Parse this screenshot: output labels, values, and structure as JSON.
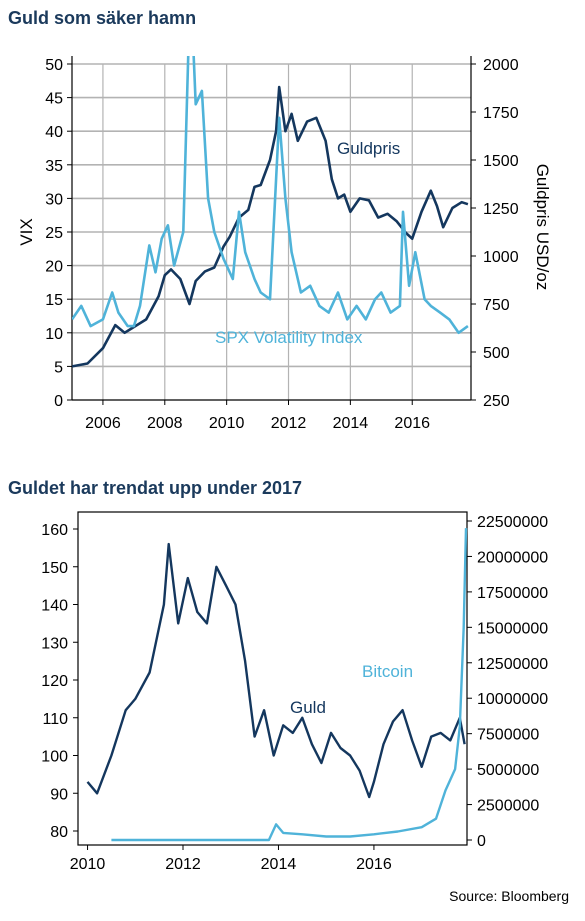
{
  "source": "Source: Bloomberg",
  "colors": {
    "dark": "#14375e",
    "light": "#4fb3d9",
    "grid": "#b3b3b3"
  },
  "chart_data": [
    {
      "type": "line",
      "title": "Guld som säker hamn",
      "ylabel_left": "VIX",
      "ylabel_right": "Guldpris USD/oz",
      "x_ticks": [
        "2006",
        "2008",
        "2010",
        "2012",
        "2014",
        "2016"
      ],
      "y_left_ticks": [
        "0",
        "5",
        "10",
        "15",
        "20",
        "25",
        "30",
        "35",
        "40",
        "45",
        "50"
      ],
      "y_right_ticks": [
        "250",
        "500",
        "750",
        "1000",
        "1250",
        "1500",
        "1750",
        "2000"
      ],
      "xlim": [
        2005.0,
        2017.9
      ],
      "ylim_left": [
        0,
        50
      ],
      "ylim_right": [
        250,
        2000
      ],
      "grid": true,
      "series": [
        {
          "name": "Guldpris",
          "axis": "right",
          "x": [
            2005.0,
            2005.5,
            2006.0,
            2006.4,
            2006.7,
            2007.0,
            2007.4,
            2007.8,
            2008.0,
            2008.2,
            2008.5,
            2008.8,
            2009.0,
            2009.3,
            2009.6,
            2009.9,
            2010.1,
            2010.4,
            2010.7,
            2010.9,
            2011.1,
            2011.4,
            2011.6,
            2011.7,
            2011.9,
            2012.1,
            2012.3,
            2012.6,
            2012.9,
            2013.2,
            2013.4,
            2013.6,
            2013.8,
            2014.0,
            2014.3,
            2014.6,
            2014.9,
            2015.2,
            2015.5,
            2015.8,
            2016.0,
            2016.3,
            2016.6,
            2016.8,
            2017.0,
            2017.3,
            2017.6,
            2017.8
          ],
          "y": [
            425,
            440,
            520,
            640,
            600,
            630,
            670,
            790,
            900,
            930,
            880,
            750,
            870,
            920,
            940,
            1050,
            1100,
            1200,
            1240,
            1360,
            1370,
            1500,
            1650,
            1880,
            1650,
            1740,
            1600,
            1700,
            1720,
            1600,
            1400,
            1300,
            1320,
            1230,
            1300,
            1290,
            1200,
            1220,
            1180,
            1120,
            1090,
            1230,
            1340,
            1260,
            1150,
            1250,
            1280,
            1270
          ]
        },
        {
          "name": "SPX Volatility Index",
          "axis": "left",
          "x": [
            2005.0,
            2005.3,
            2005.6,
            2006.0,
            2006.3,
            2006.5,
            2006.8,
            2007.0,
            2007.2,
            2007.5,
            2007.7,
            2007.9,
            2008.1,
            2008.3,
            2008.6,
            2008.8,
            2008.9,
            2009.0,
            2009.2,
            2009.4,
            2009.6,
            2009.9,
            2010.2,
            2010.4,
            2010.6,
            2010.9,
            2011.1,
            2011.4,
            2011.7,
            2011.9,
            2012.1,
            2012.4,
            2012.7,
            2013.0,
            2013.3,
            2013.6,
            2013.9,
            2014.2,
            2014.5,
            2014.8,
            2015.0,
            2015.3,
            2015.6,
            2015.7,
            2015.9,
            2016.1,
            2016.4,
            2016.6,
            2016.9,
            2017.2,
            2017.5,
            2017.8
          ],
          "y": [
            12,
            14,
            11,
            12,
            16,
            13,
            11,
            11,
            14,
            23,
            19,
            24,
            26,
            20,
            25,
            58,
            55,
            44,
            46,
            30,
            25,
            21,
            18,
            28,
            22,
            18,
            16,
            15,
            42,
            30,
            22,
            16,
            17,
            14,
            13,
            16,
            12,
            14,
            12,
            15,
            16,
            13,
            14,
            28,
            17,
            22,
            15,
            14,
            13,
            12,
            10,
            11
          ]
        }
      ]
    },
    {
      "type": "line",
      "title": "Guldet har trendat upp under 2017",
      "x_ticks": [
        "2010",
        "2012",
        "2014",
        "2016"
      ],
      "y_left_ticks": [
        "80",
        "90",
        "100",
        "110",
        "120",
        "130",
        "140",
        "150",
        "160"
      ],
      "y_right_ticks": [
        "0",
        "2500000",
        "5000000",
        "7500000",
        "10000000",
        "12500000",
        "15000000",
        "17500000",
        "20000000",
        "22500000"
      ],
      "xlim": [
        2009.8,
        2017.95
      ],
      "ylim_left": [
        78,
        162
      ],
      "ylim_right": [
        0,
        22500000
      ],
      "grid": false,
      "series": [
        {
          "name": "Guld",
          "axis": "left",
          "x": [
            2010.0,
            2010.2,
            2010.5,
            2010.8,
            2011.0,
            2011.3,
            2011.6,
            2011.7,
            2011.9,
            2012.1,
            2012.3,
            2012.5,
            2012.7,
            2012.9,
            2013.1,
            2013.3,
            2013.5,
            2013.7,
            2013.9,
            2014.1,
            2014.3,
            2014.5,
            2014.7,
            2014.9,
            2015.1,
            2015.3,
            2015.5,
            2015.7,
            2015.9,
            2016.0,
            2016.2,
            2016.4,
            2016.6,
            2016.8,
            2017.0,
            2017.2,
            2017.4,
            2017.6,
            2017.8,
            2017.9
          ],
          "y": [
            93,
            90,
            100,
            112,
            115,
            122,
            140,
            156,
            135,
            147,
            138,
            135,
            150,
            145,
            140,
            125,
            105,
            112,
            100,
            108,
            106,
            110,
            103,
            98,
            106,
            102,
            100,
            96,
            89,
            93,
            103,
            109,
            112,
            104,
            97,
            105,
            106,
            104,
            110,
            103
          ]
        },
        {
          "name": "Bitcoin",
          "axis": "right",
          "x": [
            2010.5,
            2011.0,
            2012.0,
            2013.0,
            2013.8,
            2013.95,
            2014.1,
            2014.5,
            2015.0,
            2015.5,
            2016.0,
            2016.5,
            2017.0,
            2017.3,
            2017.5,
            2017.7,
            2017.8,
            2017.88,
            2017.93
          ],
          "y": [
            0,
            0,
            0,
            0,
            0,
            1100000,
            500000,
            400000,
            250000,
            250000,
            400000,
            600000,
            900000,
            1500000,
            3500000,
            5000000,
            8000000,
            15000000,
            22000000
          ]
        }
      ]
    }
  ]
}
